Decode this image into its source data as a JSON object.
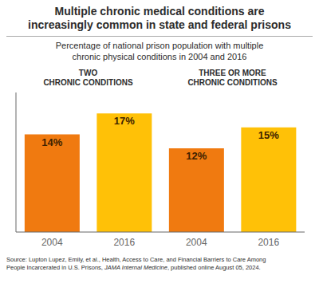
{
  "chart_data": {
    "type": "bar",
    "title": "Multiple chronic medical conditions are\nincreasingly common in state and federal prisons",
    "subtitle": "Percentage of national prison population with multiple\nchronic physical conditions in 2004 and 2016",
    "annotations": [
      "TWO\nCHRONIC CONDITIONS",
      "THREE OR MORE\nCHRONIC CONDITIONS"
    ],
    "source": [
      "Source: Lupton Lupez, Emily, et al., Health, Access to Care, and Financial Barriers to Care Among",
      "People Incarcerated in U.S. Prisons, ",
      "JAMA Internal Medicine",
      ", published online August 05, 2024."
    ],
    "categories": [
      "2004",
      "2016",
      "2004",
      "2016"
    ],
    "values": [
      14,
      17,
      12,
      15
    ],
    "value_labels": [
      "14%",
      "17%",
      "12%",
      "15%"
    ],
    "colors": [
      "#F07A10",
      "#FFC107",
      "#F07A10",
      "#FFC107"
    ],
    "ylim": [
      0,
      20
    ],
    "yticks": [],
    "tick_labels": "x",
    "data_labels": true,
    "grid": false
  }
}
